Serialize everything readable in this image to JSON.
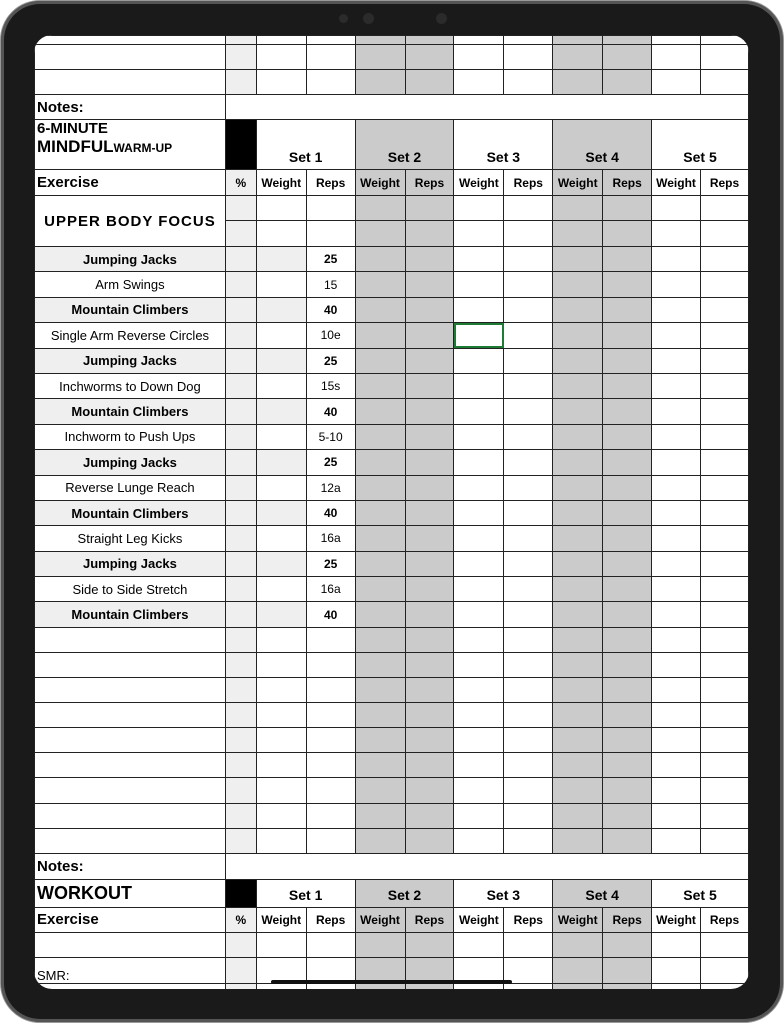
{
  "notes_label": "Notes:",
  "warmup": {
    "title_line1": "6-MINUTE",
    "title_line2_big": "MINDFUL",
    "title_line2_small": "WARM-UP",
    "exercise_label": "Exercise",
    "percent_label": "%",
    "sets": [
      "Set 1",
      "Set 2",
      "Set 3",
      "Set 4",
      "Set 5"
    ],
    "weight_label": "Weight",
    "reps_label": "Reps",
    "section": "UPPER BODY FOCUS",
    "exercises": [
      {
        "name": "Jumping Jacks",
        "reps": "25",
        "bold": true
      },
      {
        "name": "Arm Swings",
        "reps": "15",
        "bold": false
      },
      {
        "name": "Mountain Climbers",
        "reps": "40",
        "bold": true
      },
      {
        "name": "Single Arm Reverse Circles",
        "reps": "10e",
        "bold": false
      },
      {
        "name": "Jumping Jacks",
        "reps": "25",
        "bold": true
      },
      {
        "name": "Inchworms to Down Dog",
        "reps": "15s",
        "bold": false
      },
      {
        "name": "Mountain Climbers",
        "reps": "40",
        "bold": true
      },
      {
        "name": "Inchworm to Push Ups",
        "reps": "5-10",
        "bold": false
      },
      {
        "name": "Jumping Jacks",
        "reps": "25",
        "bold": true
      },
      {
        "name": "Reverse Lunge Reach",
        "reps": "12a",
        "bold": false
      },
      {
        "name": "Mountain Climbers",
        "reps": "40",
        "bold": true
      },
      {
        "name": "Straight Leg Kicks",
        "reps": "16a",
        "bold": false
      },
      {
        "name": "Jumping Jacks",
        "reps": "25",
        "bold": true
      },
      {
        "name": "Side to Side Stretch",
        "reps": "16a",
        "bold": false
      },
      {
        "name": "Mountain Climbers",
        "reps": "40",
        "bold": true
      }
    ]
  },
  "workout": {
    "title": "WORKOUT",
    "exercise_label": "Exercise",
    "smr_label": "SMR:"
  },
  "colors": {
    "shaded_set": "#cbcbcb",
    "light_cell": "#efefef",
    "selection": "#1e7b34"
  }
}
